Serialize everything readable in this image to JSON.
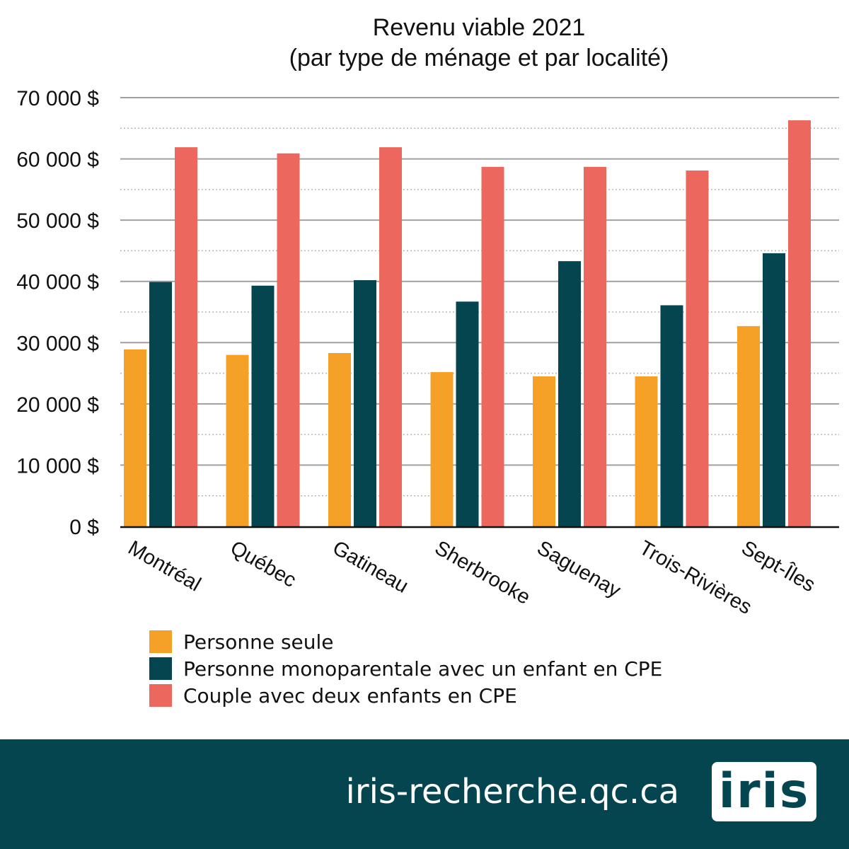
{
  "chart_data": {
    "type": "bar",
    "title": "Revenu viable 2021",
    "subtitle": "(par type de ménage et par localité)",
    "categories": [
      "Montréal",
      "Québec",
      "Gatineau",
      "Sherbrooke",
      "Saguenay",
      "Trois-Rivières",
      "Sept-Îles"
    ],
    "series": [
      {
        "name": "Personne seule",
        "color": "#f5a128",
        "values": [
          28900,
          28000,
          28300,
          25200,
          24500,
          24500,
          32700
        ]
      },
      {
        "name": "Personne monoparentale avec un enfant en CPE",
        "color": "#054550",
        "values": [
          39900,
          39300,
          40200,
          36700,
          43300,
          36100,
          44600
        ]
      },
      {
        "name": "Couple avec deux enfants en CPE",
        "color": "#ec675d",
        "values": [
          61900,
          60900,
          61900,
          58700,
          58700,
          58100,
          66300
        ]
      }
    ],
    "ylim": [
      0,
      70000
    ],
    "yticks": [
      0,
      10000,
      20000,
      30000,
      40000,
      50000,
      60000,
      70000
    ],
    "ytick_labels": [
      "0 $",
      "10 000 $",
      "20 000 $",
      "30 000 $",
      "40 000 $",
      "50 000 $",
      "60 000 $",
      "70 000 $"
    ],
    "grid": true,
    "legend_position": "bottom"
  },
  "footer": {
    "url": "iris-recherche.qc.ca",
    "logo_text": "iris"
  }
}
